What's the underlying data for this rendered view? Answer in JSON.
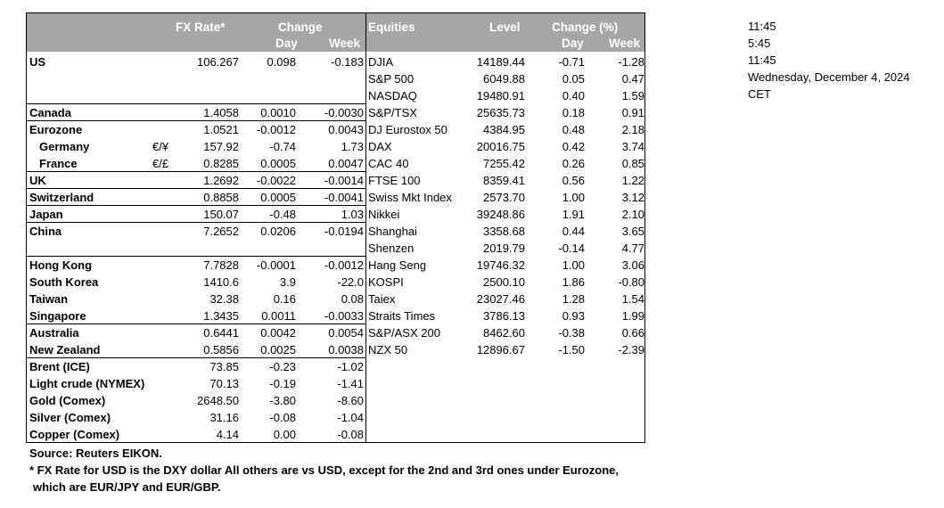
{
  "header": {
    "fx_rate": "FX Rate*",
    "change": "Change",
    "day": "Day",
    "week": "Week",
    "equities": "Equities",
    "level": "Level",
    "change_pct": "Change (%)",
    "eq_day": "Day",
    "eq_week": "Week"
  },
  "fx_rows": [
    {
      "name": "US",
      "sub": false,
      "sym": "",
      "rate": "106.267",
      "day": "0.098",
      "week": "-0.183"
    },
    {
      "name": "",
      "sub": false,
      "sym": "",
      "rate": "",
      "day": "",
      "week": ""
    },
    {
      "name": "",
      "sub": false,
      "sym": "",
      "rate": "",
      "day": "",
      "week": ""
    },
    {
      "name": "Canada",
      "sub": false,
      "sym": "",
      "rate": "1.4058",
      "day": "0.0010",
      "week": "-0.0030"
    },
    {
      "name": "Eurozone",
      "sub": false,
      "sym": "",
      "rate": "1.0521",
      "day": "-0.0012",
      "week": "0.0043"
    },
    {
      "name": "Germany",
      "sub": true,
      "sym": "€/¥",
      "rate": "157.92",
      "day": "-0.74",
      "week": "1.73"
    },
    {
      "name": "France",
      "sub": true,
      "sym": "€/£",
      "rate": "0.8285",
      "day": "0.0005",
      "week": "0.0047"
    },
    {
      "name": "UK",
      "sub": false,
      "sym": "",
      "rate": "1.2692",
      "day": "-0.0022",
      "week": "-0.0014"
    },
    {
      "name": "Switzerland",
      "sub": false,
      "sym": "",
      "rate": "0.8858",
      "day": "0.0005",
      "week": "-0.0041"
    },
    {
      "name": "Japan",
      "sub": false,
      "sym": "",
      "rate": "150.07",
      "day": "-0.48",
      "week": "1.03"
    },
    {
      "name": "China",
      "sub": false,
      "sym": "",
      "rate": "7.2652",
      "day": "0.0206",
      "week": "-0.0194"
    },
    {
      "name": "",
      "sub": false,
      "sym": "",
      "rate": "",
      "day": "",
      "week": ""
    },
    {
      "name": "Hong Kong",
      "sub": false,
      "sym": "",
      "rate": "7.7828",
      "day": "-0.0001",
      "week": "-0.0012"
    },
    {
      "name": "South Korea",
      "sub": false,
      "sym": "",
      "rate": "1410.6",
      "day": "3.9",
      "week": "-22.0"
    },
    {
      "name": "Taiwan",
      "sub": false,
      "sym": "",
      "rate": "32.38",
      "day": "0.16",
      "week": "0.08"
    },
    {
      "name": "Singapore",
      "sub": false,
      "sym": "",
      "rate": "1.3435",
      "day": "0.0011",
      "week": "-0.0033"
    },
    {
      "name": "Australia",
      "sub": false,
      "sym": "",
      "rate": "0.6441",
      "day": "0.0042",
      "week": "0.0054"
    },
    {
      "name": "New Zealand",
      "sub": false,
      "sym": "",
      "rate": "0.5856",
      "day": "0.0025",
      "week": "0.0038"
    },
    {
      "name": "Brent (ICE)",
      "sub": false,
      "sym": "",
      "rate": "73.85",
      "day": "-0.23",
      "week": "-1.02"
    },
    {
      "name": "Light crude (NYMEX)",
      "sub": false,
      "sym": "",
      "rate": "70.13",
      "day": "-0.19",
      "week": "-1.41"
    },
    {
      "name": "Gold (Comex)",
      "sub": false,
      "sym": "",
      "rate": "2648.50",
      "day": "-3.80",
      "week": "-8.60"
    },
    {
      "name": "Silver (Comex)",
      "sub": false,
      "sym": "",
      "rate": "31.16",
      "day": "-0.08",
      "week": "-1.04"
    },
    {
      "name": "Copper (Comex)",
      "sub": false,
      "sym": "",
      "rate": "4.14",
      "day": "0.00",
      "week": "-0.08"
    }
  ],
  "eq_rows": [
    {
      "name": "DJIA",
      "level": "14189.44",
      "day": "-0.71",
      "week": "-1.28"
    },
    {
      "name": "S&P 500",
      "level": "6049.88",
      "day": "0.05",
      "week": "0.47"
    },
    {
      "name": "NASDAQ",
      "level": "19480.91",
      "day": "0.40",
      "week": "1.59"
    },
    {
      "name": "S&P/TSX",
      "level": "25635.73",
      "day": "0.18",
      "week": "0.91"
    },
    {
      "name": "DJ Eurostox 50",
      "level": "4384.95",
      "day": "0.48",
      "week": "2.18"
    },
    {
      "name": "DAX",
      "level": "20016.75",
      "day": "0.42",
      "week": "3.74"
    },
    {
      "name": "CAC 40",
      "level": "7255.42",
      "day": "0.26",
      "week": "0.85"
    },
    {
      "name": "FTSE 100",
      "level": "8359.41",
      "day": "0.56",
      "week": "1.22"
    },
    {
      "name": "Swiss Mkt Index",
      "level": "2573.70",
      "day": "1.00",
      "week": "3.12"
    },
    {
      "name": "Nikkei",
      "level": "39248.86",
      "day": "1.91",
      "week": "2.10"
    },
    {
      "name": "Shanghai",
      "level": "3358.68",
      "day": "0.44",
      "week": "3.65"
    },
    {
      "name": "Shenzen",
      "level": "2019.79",
      "day": "-0.14",
      "week": "4.77"
    },
    {
      "name": "Hang Seng",
      "level": "19746.32",
      "day": "1.00",
      "week": "3.06"
    },
    {
      "name": "KOSPI",
      "level": "2500.10",
      "day": "1.86",
      "week": "-0.80"
    },
    {
      "name": "Taiex",
      "level": "23027.46",
      "day": "1.28",
      "week": "1.54"
    },
    {
      "name": "Straits Times",
      "level": "3786.13",
      "day": "0.93",
      "week": "1.99"
    },
    {
      "name": "S&P/ASX  200",
      "level": "8462.60",
      "day": "-0.38",
      "week": "0.66"
    },
    {
      "name": "NZX 50",
      "level": "12896.67",
      "day": "-1.50",
      "week": "-2.39"
    }
  ],
  "side_info": [
    "11:45",
    "5:45",
    "11:45",
    "Wednesday, December 4, 2024",
    "CET"
  ],
  "footer": {
    "source": "Source:  Reuters EIKON.",
    "note1": "* FX Rate for USD is the DXY dollar  All others are vs USD, except for the 2nd and 3rd ones under Eurozone,",
    "note2": "which are EUR/JPY and EUR/GBP."
  }
}
